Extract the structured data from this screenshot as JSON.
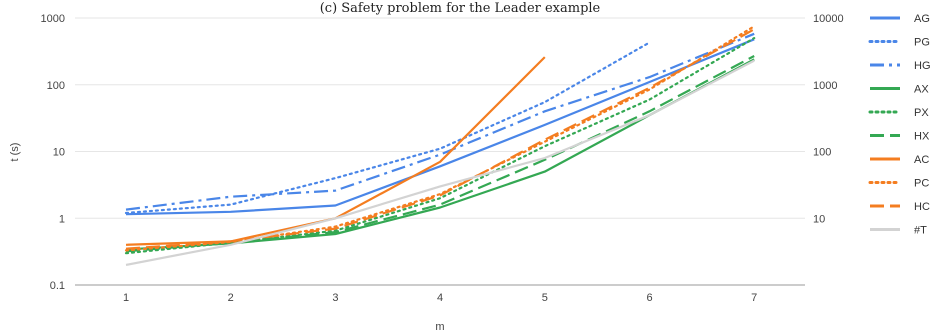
{
  "chart_data": {
    "type": "line",
    "title": "(c) Safety problem for the Leader example",
    "xlabel": "m",
    "ylabel": "t (s)",
    "x": [
      1,
      2,
      3,
      4,
      5,
      6,
      7
    ],
    "x_ticks": [
      "1",
      "2",
      "3",
      "4",
      "5",
      "6",
      "7"
    ],
    "y_scale": "log",
    "ylim": [
      0.1,
      1000
    ],
    "y_ticks": [
      "0.1",
      "1",
      "10",
      "100",
      "1000"
    ],
    "y2_scale": "log",
    "y2lim": [
      1,
      10000
    ],
    "y2_ticks": [
      "10",
      "100",
      "1000",
      "10000"
    ],
    "grid": "horizontal",
    "legend_position": "right",
    "series": [
      {
        "name": "AG",
        "color": "#4a86e8",
        "dash": "solid",
        "axis": "left",
        "values": [
          1.15,
          1.25,
          1.55,
          6.0,
          25,
          110,
          480
        ]
      },
      {
        "name": "PG",
        "color": "#4a86e8",
        "dash": "dotted",
        "axis": "left",
        "values": [
          1.2,
          1.6,
          4.0,
          11,
          55,
          430,
          null
        ]
      },
      {
        "name": "HG",
        "color": "#4a86e8",
        "dash": "dashdot",
        "axis": "left",
        "values": [
          1.35,
          2.1,
          2.6,
          9.0,
          40,
          130,
          580
        ]
      },
      {
        "name": "AX",
        "color": "#34a853",
        "dash": "solid",
        "axis": "left",
        "values": [
          0.34,
          0.42,
          0.58,
          1.45,
          5.0,
          35,
          240
        ]
      },
      {
        "name": "PX",
        "color": "#34a853",
        "dash": "dotted",
        "axis": "left",
        "values": [
          0.3,
          0.43,
          0.65,
          2.0,
          12,
          60,
          500
        ]
      },
      {
        "name": "HX",
        "color": "#34a853",
        "dash": "dashed",
        "axis": "left",
        "values": [
          0.32,
          0.43,
          0.62,
          1.6,
          7.5,
          40,
          270
        ]
      },
      {
        "name": "AC",
        "color": "#f47d20",
        "dash": "solid",
        "axis": "left",
        "values": [
          0.4,
          0.45,
          1.0,
          7.0,
          260,
          null,
          null
        ]
      },
      {
        "name": "PC",
        "color": "#f47d20",
        "dash": "dotted",
        "axis": "left",
        "values": [
          0.33,
          0.44,
          0.75,
          2.3,
          14,
          85,
          750
        ]
      },
      {
        "name": "HC",
        "color": "#f47d20",
        "dash": "dashed",
        "axis": "left",
        "values": [
          0.35,
          0.45,
          0.7,
          2.2,
          15,
          90,
          680
        ]
      },
      {
        "name": "#T",
        "color": "#d3d3d3",
        "dash": "solid",
        "axis": "right",
        "values": [
          2,
          4,
          10,
          30,
          80,
          350,
          2300
        ]
      }
    ]
  }
}
